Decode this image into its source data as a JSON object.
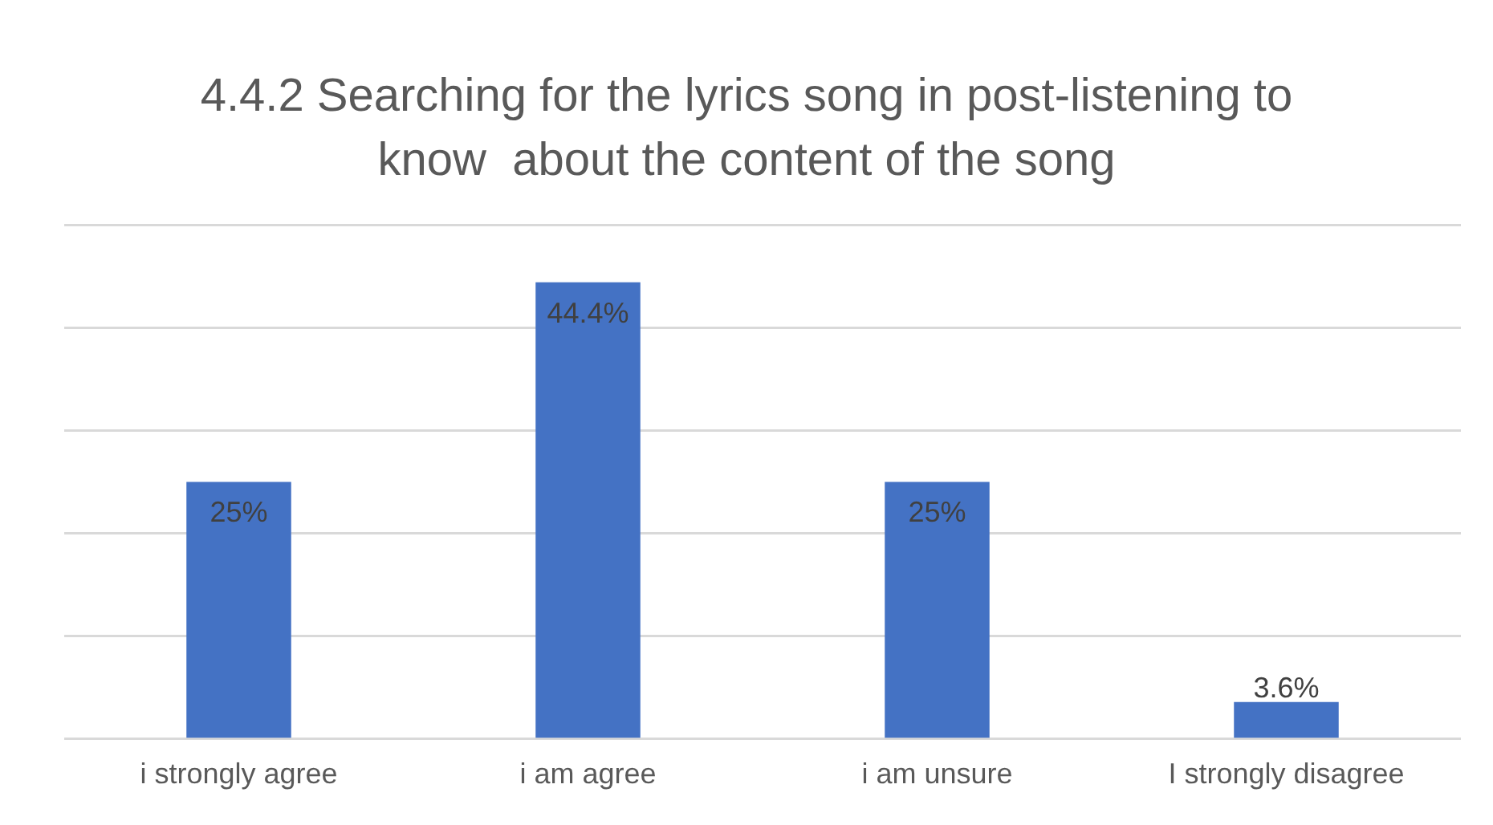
{
  "chart_data": {
    "type": "bar",
    "title": "4.4.2 Searching for the lyrics song in post-listening to know  about the content of the song",
    "categories": [
      "i strongly agree",
      "i am agree",
      "i am unsure",
      "I strongly disagree"
    ],
    "values": [
      25,
      44.4,
      25,
      3.6
    ],
    "color": "#4472c4",
    "value_labels": [
      "25%",
      "44.4%",
      "25%",
      "3.6%"
    ],
    "ylim": [
      0,
      50
    ],
    "yticks": [
      {
        "value": 0,
        "label": null
      },
      {
        "value": 10,
        "label": null
      },
      {
        "value": 20,
        "label": null
      },
      {
        "value": 30,
        "label": null
      },
      {
        "value": 40,
        "label": null
      },
      {
        "value": 50,
        "label": null
      }
    ],
    "tick_labels": "x",
    "grid": "y",
    "legend": false
  }
}
